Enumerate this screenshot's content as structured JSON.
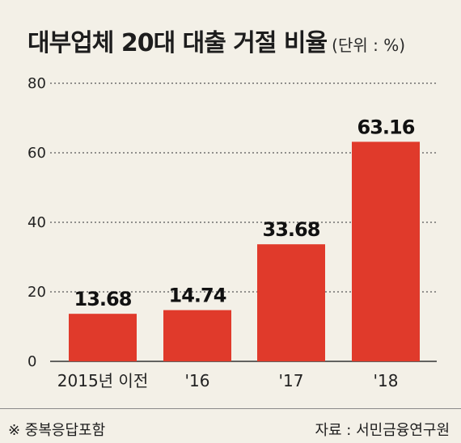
{
  "chart_data": {
    "type": "bar",
    "title": "대부업체 20대 대출 거절 비율",
    "unit": "(단위 : %)",
    "categories": [
      "2015년 이전",
      "'16",
      "'17",
      "'18"
    ],
    "values": [
      13.68,
      14.74,
      33.68,
      63.16
    ],
    "value_labels": [
      "13.68",
      "14.74",
      "33.68",
      "63.16"
    ],
    "y_ticks": [
      0,
      20,
      40,
      60,
      80
    ],
    "ylim": [
      0,
      80
    ],
    "grid": "dotted horizontal",
    "bar_color": "#e03a2b"
  },
  "footnote": "※ 중복응답포함",
  "source": "자료 : 서민금융연구원",
  "colors": {
    "background": "#f3f0e7",
    "bar": "#e03a2b",
    "text": "#1d1d1d"
  }
}
